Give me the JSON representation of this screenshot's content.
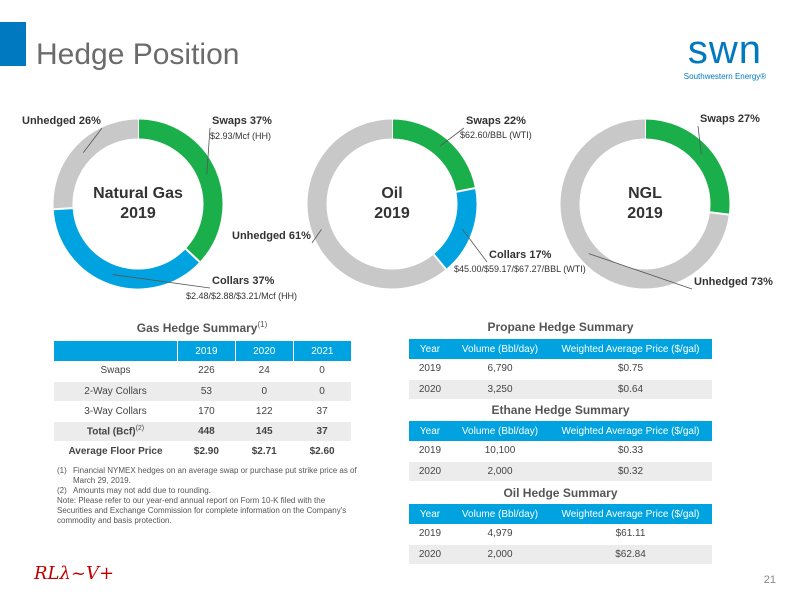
{
  "page": {
    "title": "Hedge Position",
    "page_number": "21"
  },
  "logo": {
    "mark": "swn",
    "sub": "Southwestern Energy®",
    "rv_mark": "RLλ~V+"
  },
  "colors": {
    "swaps": "#1aaf4b",
    "collars": "#00a3e0",
    "unhedged": "#c8c8c8",
    "header": "#00a3e0",
    "accent": "#0079c1"
  },
  "chart_data": [
    {
      "type": "pie",
      "center_label": [
        "Natural Gas",
        "2019"
      ],
      "slices": [
        {
          "label": "Swaps 37%",
          "sublabel": "$2.93/Mcf (HH)",
          "value": 37,
          "kind": "swaps"
        },
        {
          "label": "Collars 37%",
          "sublabel": "$2.48/$2.88/$3.21/Mcf (HH)",
          "value": 37,
          "kind": "collars"
        },
        {
          "label": "Unhedged 26%",
          "sublabel": "",
          "value": 26,
          "kind": "unhedged"
        }
      ]
    },
    {
      "type": "pie",
      "center_label": [
        "Oil",
        "2019"
      ],
      "slices": [
        {
          "label": "Swaps 22%",
          "sublabel": "$62.60/BBL (WTI)",
          "value": 22,
          "kind": "swaps"
        },
        {
          "label": "Collars 17%",
          "sublabel": "$45.00/$59.17/$67.27/BBL (WTI)",
          "value": 17,
          "kind": "collars"
        },
        {
          "label": "Unhedged 61%",
          "sublabel": "",
          "value": 61,
          "kind": "unhedged"
        }
      ]
    },
    {
      "type": "pie",
      "center_label": [
        "NGL",
        "2019"
      ],
      "slices": [
        {
          "label": "Swaps 27%",
          "sublabel": "",
          "value": 27,
          "kind": "swaps"
        },
        {
          "label": "Unhedged 73%",
          "sublabel": "",
          "value": 73,
          "kind": "unhedged"
        }
      ]
    }
  ],
  "gas_summary": {
    "title": "Gas Hedge Summary",
    "title_sup": "(1)",
    "headers": [
      "",
      "2019",
      "2020",
      "2021"
    ],
    "rows": [
      [
        "Swaps",
        "226",
        "24",
        "0"
      ],
      [
        "2-Way Collars",
        "53",
        "0",
        "0"
      ],
      [
        "3-Way Collars",
        "170",
        "122",
        "37"
      ]
    ],
    "total_label": "Total (Bcf)",
    "total_sup": "(2)",
    "total": [
      "448",
      "145",
      "37"
    ],
    "floor": [
      "Average Floor Price",
      "$2.90",
      "$2.71",
      "$2.60"
    ]
  },
  "propane": {
    "title": "Propane Hedge Summary",
    "headers": [
      "Year",
      "Volume (Bbl/day)",
      "Weighted Average Price ($/gal)"
    ],
    "rows": [
      [
        "2019",
        "6,790",
        "$0.75"
      ],
      [
        "2020",
        "3,250",
        "$0.64"
      ]
    ]
  },
  "ethane": {
    "title": "Ethane Hedge Summary",
    "headers": [
      "Year",
      "Volume (Bbl/day)",
      "Weighted Average Price ($/gal)"
    ],
    "rows": [
      [
        "2019",
        "10,100",
        "$0.33"
      ],
      [
        "2020",
        "2,000",
        "$0.32"
      ]
    ]
  },
  "oil": {
    "title": "Oil Hedge Summary",
    "headers": [
      "Year",
      "Volume (Bbl/day)",
      "Weighted Average Price ($/gal)"
    ],
    "rows": [
      [
        "2019",
        "4,979",
        "$61.11"
      ],
      [
        "2020",
        "2,000",
        "$62.84"
      ]
    ]
  },
  "footnotes": {
    "n1_num": "(1)",
    "n1": "Financial NYMEX hedges on an average swap or purchase put strike price as of March 29, 2019.",
    "n2_num": "(2)",
    "n2": "Amounts may not add due to rounding.",
    "note": "Note: Please refer to our year-end annual report on Form 10-K filed with the Securities and Exchange Commission for complete information on the Company's commodity and basis protection."
  }
}
